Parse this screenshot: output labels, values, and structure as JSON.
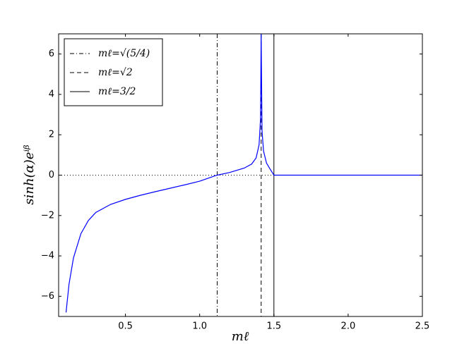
{
  "chart_data": {
    "type": "line",
    "xlabel": "mℓ",
    "ylabel": "sinh(α)eⁱᵝ",
    "x": [
      0.1,
      0.12,
      0.15,
      0.2,
      0.25,
      0.3,
      0.4,
      0.5,
      0.6,
      0.7,
      0.8,
      0.9,
      1.0,
      1.1,
      1.118,
      1.2,
      1.3,
      1.35,
      1.38,
      1.4,
      1.41,
      1.414,
      1.42,
      1.43,
      1.45,
      1.47,
      1.49,
      1.5,
      1.6,
      2.0,
      2.5
    ],
    "series": [
      {
        "color": "#0000ff",
        "values": [
          -6.8,
          -5.4,
          -4.1,
          -2.9,
          -2.25,
          -1.85,
          -1.45,
          -1.2,
          -1.0,
          -0.82,
          -0.65,
          -0.48,
          -0.3,
          -0.04,
          0,
          0.13,
          0.35,
          0.55,
          0.85,
          1.5,
          2.8,
          7.0,
          2.2,
          1.2,
          0.6,
          0.35,
          0.12,
          0,
          0,
          0,
          0
        ]
      }
    ],
    "vlines": [
      {
        "x": 1.118,
        "style": "dashdot",
        "label": "mℓ=√(5/4)"
      },
      {
        "x": 1.4142,
        "style": "dashed",
        "label": "mℓ=√2"
      },
      {
        "x": 1.5,
        "style": "solid",
        "label": "mℓ=3/2"
      }
    ],
    "hline": 0,
    "xlim": [
      0.05,
      2.5
    ],
    "ylim": [
      -7,
      7
    ],
    "xticks": [
      0.5,
      {
        "value": 1,
        "label": "1.0"
      },
      1.5,
      {
        "value": 2,
        "label": "2.0"
      },
      2.5
    ],
    "yticks": [
      {
        "value": -6,
        "label": "−6"
      },
      {
        "value": -4,
        "label": "−4"
      },
      {
        "value": -2,
        "label": "−2"
      },
      0,
      2,
      4,
      6
    ],
    "legend": "upper left"
  }
}
